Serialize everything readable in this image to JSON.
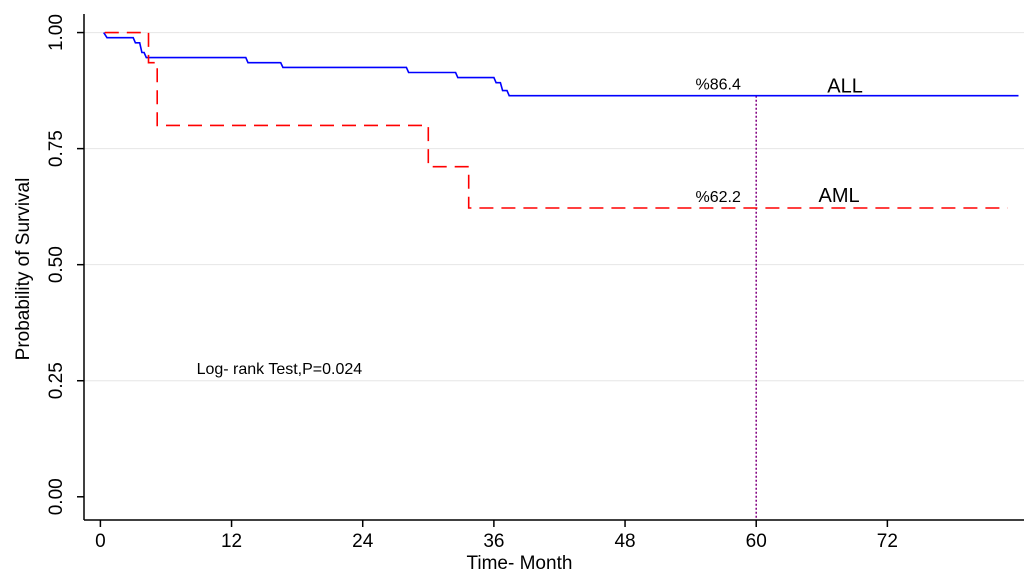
{
  "chart_data": {
    "type": "line",
    "title": "",
    "xlabel": "Time- Month",
    "ylabel": "Probability of Survival",
    "xlim": [
      -1.5,
      84.5
    ],
    "ylim": [
      -0.05,
      1.04
    ],
    "x_ticks": [
      0,
      12,
      24,
      36,
      48,
      60,
      72
    ],
    "x_tick_labels": [
      "0",
      "12",
      "24",
      "36",
      "48",
      "60",
      "72"
    ],
    "y_ticks": [
      0,
      0.25,
      0.5,
      0.75,
      1
    ],
    "y_tick_labels": [
      "0.00",
      "0.25",
      "0.50",
      "0.75",
      "1.00"
    ],
    "grid": "horizontal",
    "series": [
      {
        "name": "ALL",
        "color": "#0000ff",
        "dash": "solid",
        "points": [
          [
            0.3,
            1.0
          ],
          [
            0.6,
            0.989
          ],
          [
            3.0,
            0.989
          ],
          [
            3.2,
            0.978
          ],
          [
            3.6,
            0.978
          ],
          [
            3.8,
            0.957
          ],
          [
            4.0,
            0.957
          ],
          [
            4.2,
            0.946
          ],
          [
            13.3,
            0.946
          ],
          [
            13.5,
            0.935
          ],
          [
            16.5,
            0.935
          ],
          [
            16.7,
            0.925
          ],
          [
            28.0,
            0.925
          ],
          [
            28.2,
            0.914
          ],
          [
            32.5,
            0.914
          ],
          [
            32.7,
            0.903
          ],
          [
            36.0,
            0.903
          ],
          [
            36.2,
            0.892
          ],
          [
            36.6,
            0.892
          ],
          [
            36.8,
            0.875
          ],
          [
            37.2,
            0.875
          ],
          [
            37.4,
            0.864
          ],
          [
            84.0,
            0.864
          ]
        ]
      },
      {
        "name": "AML",
        "color": "#ff0000",
        "dash": "dashed",
        "points": [
          [
            0.4,
            1.0
          ],
          [
            4.4,
            1.0
          ],
          [
            4.4,
            0.935
          ],
          [
            5.2,
            0.935
          ],
          [
            5.2,
            0.8
          ],
          [
            30.0,
            0.8
          ],
          [
            30.0,
            0.711
          ],
          [
            33.7,
            0.711
          ],
          [
            33.7,
            0.622
          ],
          [
            83.0,
            0.622
          ]
        ]
      }
    ],
    "reference_line": {
      "x": 60,
      "color": "#800080",
      "style": "dotted"
    },
    "annotations": [
      {
        "text": "%86.4",
        "x": 60,
        "y": 0.864,
        "color": "#000000"
      },
      {
        "text": "ALL",
        "x": 66.5,
        "y": 0.864,
        "color": "#000000"
      },
      {
        "text": "%62.2",
        "x": 60,
        "y": 0.622,
        "color": "#000000"
      },
      {
        "text": "AML",
        "x": 65.7,
        "y": 0.622,
        "color": "#000000"
      },
      {
        "text": "Log- rank Test,P=0.024",
        "x": 8.8,
        "y": 0.265,
        "color": "#0000ff"
      }
    ]
  }
}
